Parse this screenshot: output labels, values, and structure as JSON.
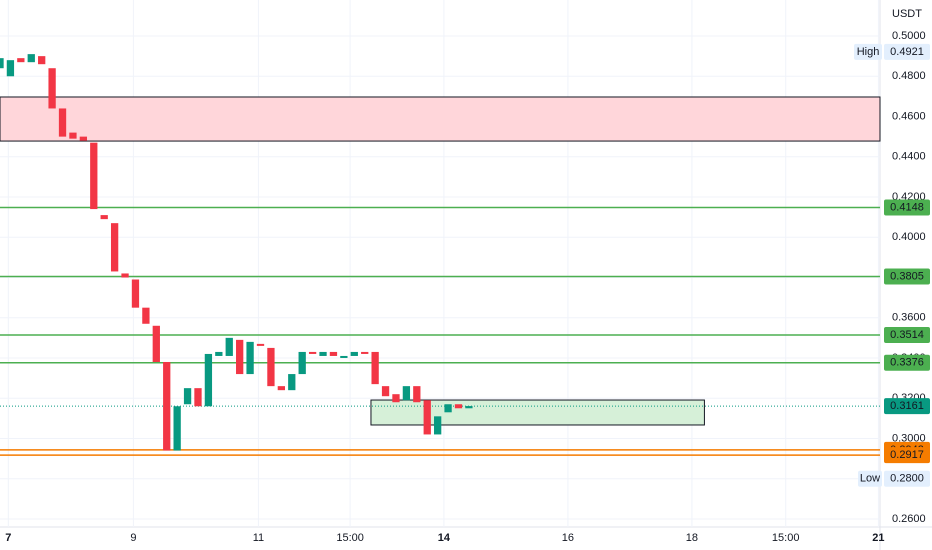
{
  "chart_data": {
    "type": "candlestick",
    "unit": "USDT",
    "x": [
      0,
      1,
      2,
      3,
      4,
      5,
      6,
      7,
      8,
      9,
      10,
      11,
      12,
      13,
      14,
      15,
      16,
      17,
      18,
      19,
      20,
      21,
      22,
      23,
      24,
      25,
      26,
      27,
      28,
      29,
      30,
      31,
      32,
      33,
      34,
      35,
      36,
      37,
      38,
      39,
      40,
      41,
      42,
      43,
      44,
      45
    ],
    "open": [
      0.484,
      0.48,
      0.489,
      0.487,
      0.49,
      0.484,
      0.464,
      0.452,
      0.45,
      0.447,
      0.411,
      0.407,
      0.382,
      0.379,
      0.365,
      0.356,
      0.338,
      0.294,
      0.317,
      0.325,
      0.316,
      0.341,
      0.341,
      0.349,
      0.332,
      0.347,
      0.345,
      0.326,
      0.324,
      0.332,
      0.343,
      0.341,
      0.343,
      0.34,
      0.341,
      0.343,
      0.343,
      0.326,
      0.322,
      0.319,
      0.326,
      0.319,
      0.302,
      0.313,
      0.317,
      0.315
    ],
    "high": {
      "label": "High",
      "value": 0.4921
    },
    "low": {
      "label": "Low",
      "value": {
        "value": 0.28,
        "label": "0.2800"
      }
    },
    "close": [
      0.489,
      0.488,
      0.487,
      0.491,
      0.486,
      0.464,
      0.45,
      0.449,
      0.448,
      0.414,
      0.409,
      0.383,
      0.38,
      0.365,
      0.357,
      0.338,
      0.294,
      0.316,
      0.325,
      0.316,
      0.342,
      0.343,
      0.35,
      0.332,
      0.348,
      0.346,
      0.326,
      0.324,
      0.332,
      0.343,
      0.342,
      0.343,
      0.341,
      0.341,
      0.343,
      0.342,
      0.327,
      0.321,
      0.318,
      0.326,
      0.318,
      0.302,
      0.311,
      0.317,
      0.315,
      0.3161
    ],
    "up_color": "#089981",
    "down_color": "#f23645",
    "xlim": [
      0,
      84.45
    ],
    "xticks": [
      {
        "value": 0.8,
        "label": "7"
      },
      {
        "value": 12.8,
        "label": "9"
      },
      {
        "value": 24.8,
        "label": "11"
      },
      {
        "value": 33.6,
        "label": "15:00"
      },
      {
        "value": 42.6,
        "label": "14"
      },
      {
        "value": 54.5,
        "label": "16"
      },
      {
        "value": 66.4,
        "label": "18"
      },
      {
        "value": 75.4,
        "label": "15:00"
      },
      {
        "value": 84.3,
        "label": "21"
      }
    ],
    "ylim": [
      0.256,
      0.5179
    ],
    "yticks": [
      {
        "value": 0.26,
        "label": "0.2600"
      },
      {
        "value": 0.28,
        "label": "0.2800"
      },
      {
        "value": 0.3,
        "label": "0.3000"
      },
      {
        "value": 0.32,
        "label": "0.3200"
      },
      {
        "value": 0.34,
        "label": "0.3400"
      },
      {
        "value": 0.36,
        "label": "0.3600"
      },
      {
        "value": 0.38,
        "label": "0.3800"
      },
      {
        "value": 0.4,
        "label": "0.4000"
      },
      {
        "value": 0.42,
        "label": "0.4200"
      },
      {
        "value": 0.44,
        "label": "0.4400"
      },
      {
        "value": 0.46,
        "label": "0.4600"
      },
      {
        "value": 0.48,
        "label": "0.4800"
      },
      {
        "value": 0.5,
        "label": "0.5000"
      }
    ],
    "grid": true,
    "levels": [
      {
        "value": 0.4148,
        "color": "#4caf50"
      },
      {
        "value": 0.3805,
        "color": "#4caf50"
      },
      {
        "value": 0.3514,
        "color": "#4caf50"
      },
      {
        "value": 0.3376,
        "color": "#4caf50"
      },
      {
        "value": 0.2943,
        "color": "#f57c00"
      },
      {
        "value": 0.2917,
        "color": "#f57c00"
      }
    ],
    "zones": [
      {
        "top": 0.4697,
        "bottom": 0.4478,
        "color": "#ffd6da"
      },
      {
        "top": 0.3191,
        "bottom": 0.3067,
        "x_start": 35.6,
        "x_end": 67.6,
        "color": "#d6f0d8"
      }
    ],
    "current_price": {
      "value": 0.3161,
      "color": "#089981"
    }
  }
}
